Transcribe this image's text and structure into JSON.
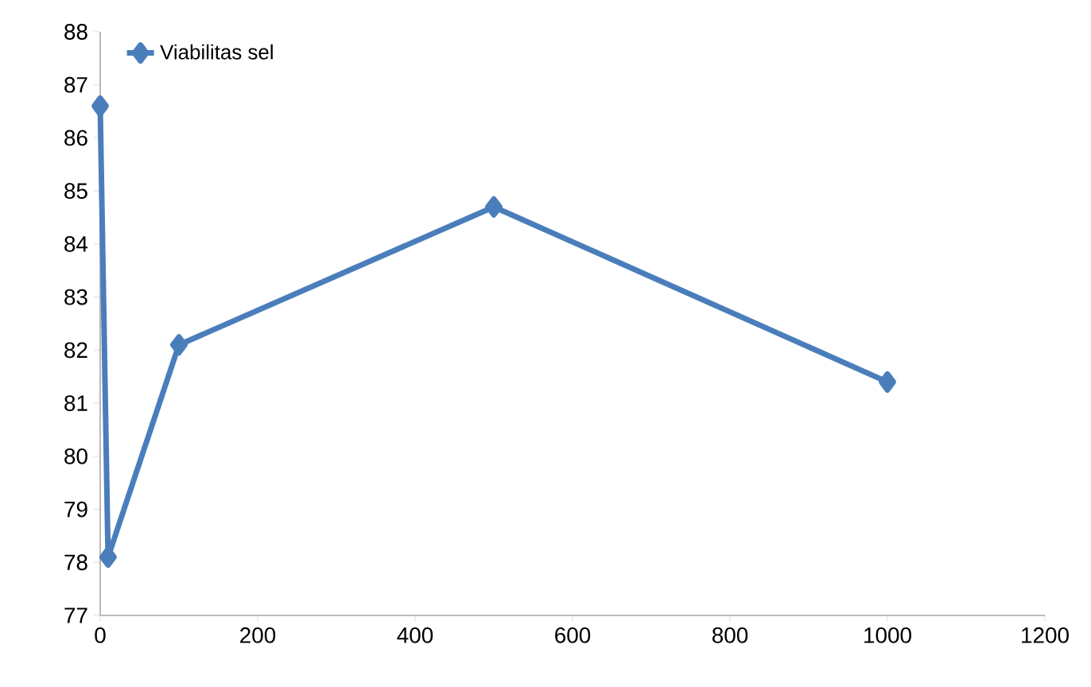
{
  "chart_data": {
    "type": "line",
    "x": [
      0,
      10,
      100,
      500,
      1000
    ],
    "series": [
      {
        "name": "Viabilitas sel",
        "color": "#4a7ebb",
        "values": [
          86.6,
          78.1,
          82.1,
          84.7,
          81.4
        ]
      }
    ],
    "xlim": [
      0,
      1200
    ],
    "ylim": [
      77,
      88
    ],
    "xticks": [
      0,
      200,
      400,
      600,
      800,
      1000,
      1200
    ],
    "yticks": [
      77,
      78,
      79,
      80,
      81,
      82,
      83,
      84,
      85,
      86,
      87,
      88
    ],
    "marker": "diamond",
    "line_style": "solid",
    "grid": false,
    "legend": "top left"
  }
}
